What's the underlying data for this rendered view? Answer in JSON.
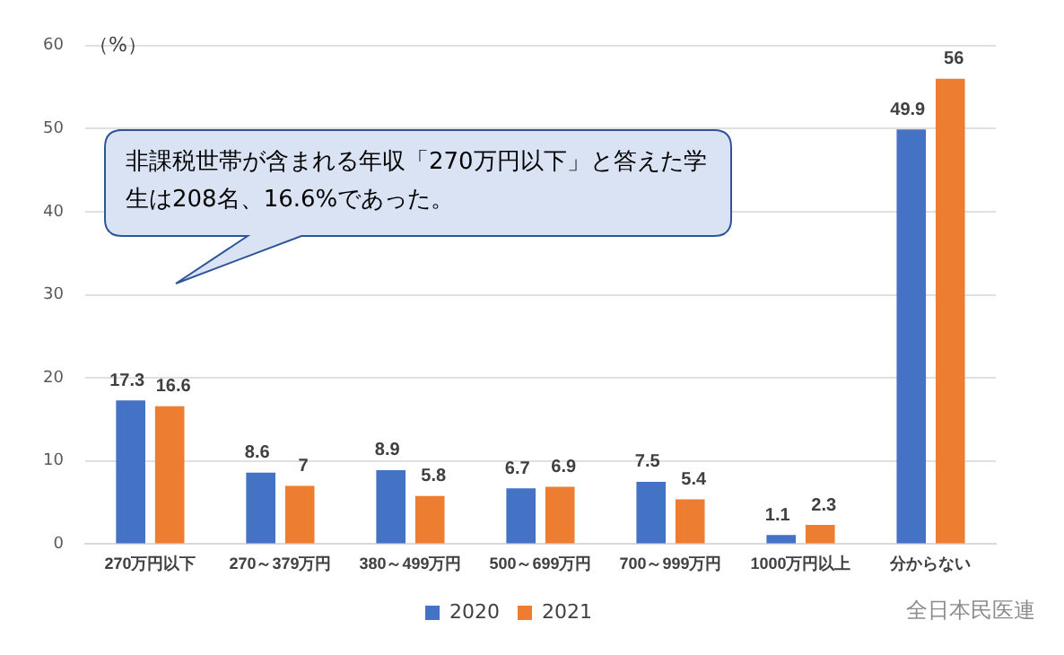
{
  "chart_data": {
    "type": "bar",
    "ylabel": "（%）",
    "categories": [
      "270万円以下",
      "270～379万円",
      "380～499万円",
      "500～699万円",
      "700～999万円",
      "1000万円以上",
      "分からない"
    ],
    "series": [
      {
        "name": "2020",
        "color": "#4472c4",
        "values": [
          17.3,
          8.6,
          8.9,
          6.7,
          7.5,
          1.1,
          49.9
        ]
      },
      {
        "name": "2021",
        "color": "#ed7d31",
        "values": [
          16.6,
          7,
          5.8,
          6.9,
          5.4,
          2.3,
          56
        ]
      }
    ],
    "ylim": [
      0,
      60
    ],
    "yticks": [
      0,
      10,
      20,
      30,
      40,
      50,
      60
    ],
    "grid": "y",
    "legend": "bottom",
    "data_labels": true,
    "annotations": [
      "非課税世帯が含まれる年収「270万円以下」と答えた学生は208名、16.6%であった。",
      "全日本民医連"
    ]
  }
}
